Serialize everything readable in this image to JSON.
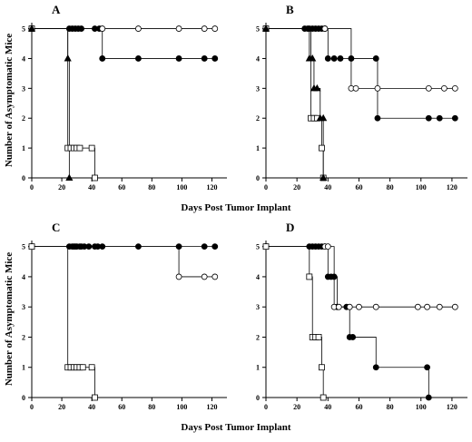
{
  "chart_data": [
    {
      "type": "step",
      "title": "A",
      "ylabel": "Number of Asymptomatic Mice",
      "xlabel": "Days Post Tumor Implant",
      "xlim": [
        0,
        130
      ],
      "ylim": [
        0,
        5.2
      ],
      "xticks": [
        0,
        20,
        40,
        60,
        80,
        100,
        120
      ],
      "yticks": [
        0,
        1,
        2,
        3,
        4,
        5
      ],
      "grid": false,
      "series": [
        {
          "marker": "circle",
          "filled": true,
          "color": "#000000",
          "x": [
            0,
            25,
            27,
            29,
            31,
            33,
            42,
            45,
            47,
            71,
            98,
            115,
            122
          ],
          "values": [
            5,
            5,
            5,
            5,
            5,
            5,
            5,
            5,
            4,
            4,
            4,
            4,
            4
          ]
        },
        {
          "marker": "circle",
          "filled": false,
          "color": "#000000",
          "x": [
            0,
            47,
            71,
            98,
            115,
            122
          ],
          "values": [
            5,
            5,
            5,
            5,
            5,
            5
          ]
        },
        {
          "marker": "square",
          "filled": false,
          "color": "#000000",
          "x": [
            0,
            24,
            26,
            28,
            30,
            32,
            40,
            42
          ],
          "values": [
            5,
            1,
            1,
            1,
            1,
            1,
            1,
            0
          ]
        },
        {
          "marker": "triangle",
          "filled": true,
          "color": "#000000",
          "x": [
            0,
            24,
            25
          ],
          "values": [
            5,
            4,
            0
          ]
        }
      ]
    },
    {
      "type": "step",
      "title": "B",
      "xlim": [
        0,
        130
      ],
      "ylim": [
        0,
        5.2
      ],
      "xticks": [
        0,
        20,
        40,
        60,
        80,
        100,
        120
      ],
      "yticks": [
        0,
        1,
        2,
        3,
        4,
        5
      ],
      "grid": false,
      "series": [
        {
          "marker": "circle",
          "filled": true,
          "color": "#000000",
          "x": [
            0,
            25,
            27,
            28,
            30,
            32,
            34,
            36,
            38,
            40,
            44,
            48,
            55,
            71,
            72,
            105,
            112,
            122
          ],
          "values": [
            5,
            5,
            5,
            5,
            5,
            5,
            5,
            5,
            5,
            4,
            4,
            4,
            4,
            4,
            2,
            2,
            2,
            2
          ]
        },
        {
          "marker": "circle",
          "filled": false,
          "color": "#000000",
          "x": [
            0,
            38,
            55,
            58,
            72,
            105,
            115,
            122
          ],
          "values": [
            5,
            5,
            3,
            3,
            3,
            3,
            3,
            3
          ]
        },
        {
          "marker": "square",
          "filled": false,
          "color": "#000000",
          "x": [
            0,
            29,
            31,
            33,
            36,
            37
          ],
          "values": [
            5,
            2,
            2,
            2,
            1,
            0
          ]
        },
        {
          "marker": "triangle",
          "filled": true,
          "color": "#000000",
          "x": [
            0,
            28,
            30,
            31,
            33,
            35,
            37,
            37
          ],
          "values": [
            5,
            4,
            4,
            3,
            3,
            2,
            2,
            0
          ]
        }
      ]
    },
    {
      "type": "step",
      "title": "C",
      "ylabel": "Number of Asymptomatic Mice",
      "xlabel": "Days Post Tumor Implant",
      "xlim": [
        0,
        130
      ],
      "ylim": [
        0,
        5.2
      ],
      "xticks": [
        0,
        20,
        40,
        60,
        80,
        100,
        120
      ],
      "yticks": [
        0,
        1,
        2,
        3,
        4,
        5
      ],
      "grid": false,
      "series": [
        {
          "marker": "circle",
          "filled": true,
          "color": "#000000",
          "x": [
            0,
            25,
            27,
            28,
            29,
            30,
            32,
            33,
            35,
            38,
            42,
            44,
            47,
            71,
            98,
            115,
            122
          ],
          "values": [
            5,
            5,
            5,
            5,
            5,
            5,
            5,
            5,
            5,
            5,
            5,
            5,
            5,
            5,
            5,
            5,
            5
          ]
        },
        {
          "marker": "circle",
          "filled": false,
          "color": "#000000",
          "x": [
            0,
            98,
            115,
            122
          ],
          "values": [
            5,
            4,
            4,
            4
          ]
        },
        {
          "marker": "square",
          "filled": false,
          "color": "#000000",
          "x": [
            0,
            24,
            26,
            28,
            30,
            32,
            34,
            40,
            42
          ],
          "values": [
            5,
            1,
            1,
            1,
            1,
            1,
            1,
            1,
            0
          ]
        }
      ]
    },
    {
      "type": "step",
      "title": "D",
      "xlim": [
        0,
        130
      ],
      "ylim": [
        0,
        5.2
      ],
      "xticks": [
        0,
        20,
        40,
        60,
        80,
        100,
        120
      ],
      "yticks": [
        0,
        1,
        2,
        3,
        4,
        5
      ],
      "grid": false,
      "series": [
        {
          "marker": "circle",
          "filled": true,
          "color": "#000000",
          "x": [
            0,
            28,
            30,
            32,
            34,
            36,
            38,
            40,
            42,
            44,
            46,
            52,
            54,
            56,
            71,
            104,
            105
          ],
          "values": [
            5,
            5,
            5,
            5,
            5,
            5,
            5,
            4,
            4,
            4,
            3,
            3,
            2,
            2,
            1,
            1,
            0
          ]
        },
        {
          "marker": "circle",
          "filled": false,
          "color": "#000000",
          "x": [
            0,
            38,
            40,
            44,
            47,
            54,
            60,
            71,
            98,
            104,
            112,
            122
          ],
          "values": [
            5,
            5,
            5,
            3,
            3,
            3,
            3,
            3,
            3,
            3,
            3,
            3
          ]
        },
        {
          "marker": "square",
          "filled": false,
          "color": "#000000",
          "x": [
            0,
            28,
            30,
            32,
            34,
            36,
            37
          ],
          "values": [
            5,
            4,
            2,
            2,
            2,
            1,
            0
          ]
        }
      ]
    }
  ]
}
